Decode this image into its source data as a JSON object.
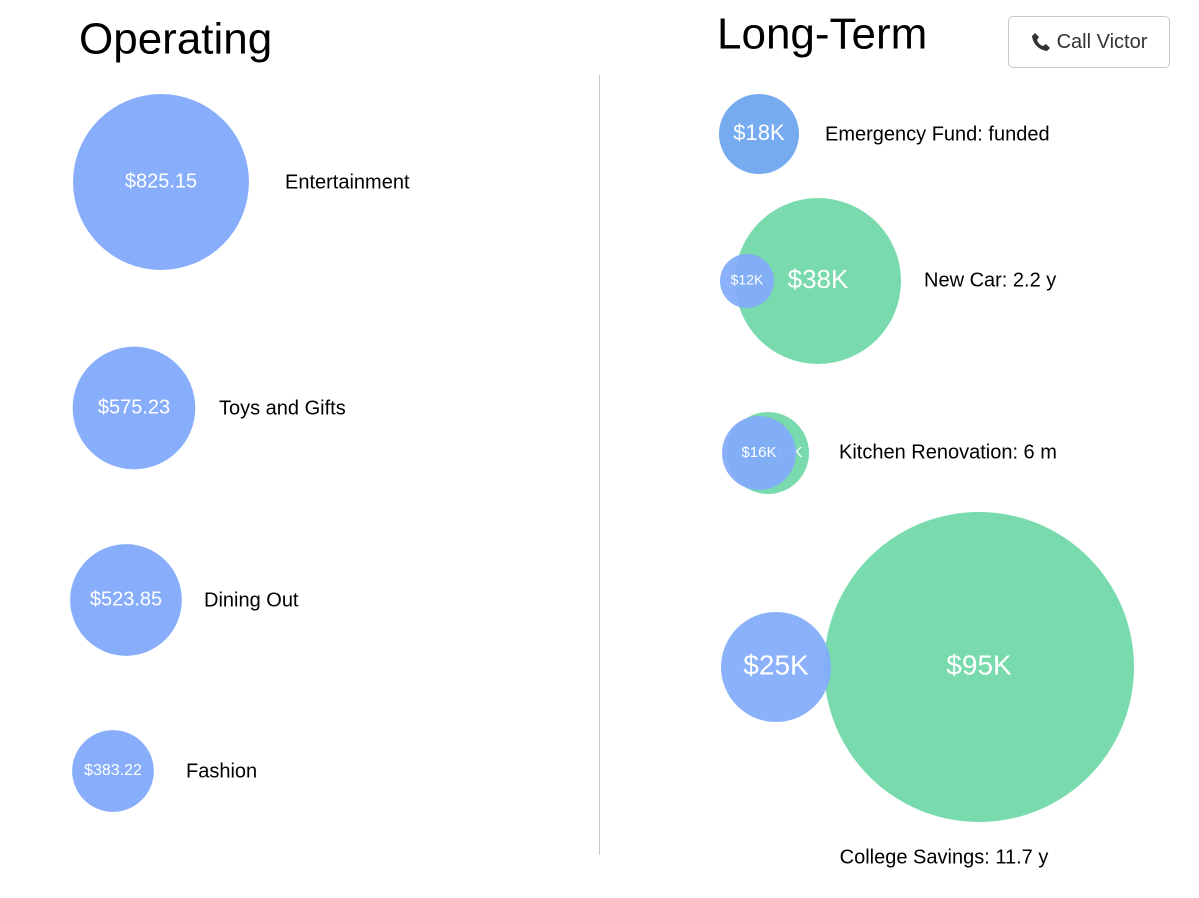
{
  "header": {
    "operating_title": "Operating",
    "long_term_title": "Long-Term",
    "call_button": "Call Victor"
  },
  "operating": [
    {
      "name": "Entertainment",
      "value": 825.15,
      "value_label": "$825.15"
    },
    {
      "name": "Toys and Gifts",
      "value": 575.23,
      "value_label": "$575.23"
    },
    {
      "name": "Dining Out",
      "value": 523.85,
      "value_label": "$523.85"
    },
    {
      "name": "Fashion",
      "value": 383.22,
      "value_label": "$383.22"
    }
  ],
  "long_term": [
    {
      "name": "Emergency Fund: funded",
      "saved": 18000,
      "saved_label": "$18K"
    },
    {
      "name": "New Car: 2.2 y",
      "saved": 12000,
      "saved_label": "$12K",
      "goal": 38000,
      "goal_label": "$38K"
    },
    {
      "name": "Kitchen Renovation: 6 m",
      "saved": 16000,
      "saved_label": "$16K",
      "goal": 19000,
      "goal_label": "$19K"
    },
    {
      "name": "College Savings: 11.7 y",
      "saved": 25000,
      "saved_label": "$25K",
      "goal": 95000,
      "goal_label": "$95K"
    }
  ]
}
